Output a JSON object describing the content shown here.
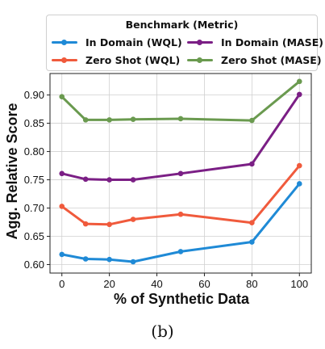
{
  "chart_data": {
    "type": "line",
    "xlabel": "% of Synthetic Data",
    "ylabel": "Agg. Relative Score",
    "x": [
      0,
      10,
      20,
      30,
      50,
      80,
      100
    ],
    "xlim": [
      -5,
      105
    ],
    "ylim": [
      0.585,
      0.938
    ],
    "xticks": [
      0,
      20,
      40,
      60,
      80,
      100
    ],
    "yticks": [
      0.6,
      0.65,
      0.7,
      0.75,
      0.8,
      0.85,
      0.9
    ],
    "grid": true,
    "legend": {
      "title": "Benchmark (Metric)",
      "placement": "top"
    },
    "series": [
      {
        "name": "In Domain (WQL)",
        "color": "#1f8ad6",
        "values": [
          0.618,
          0.61,
          0.609,
          0.605,
          0.623,
          0.64,
          0.743
        ]
      },
      {
        "name": "In Domain (MASE)",
        "color": "#7b1f85",
        "values": [
          0.761,
          0.751,
          0.75,
          0.75,
          0.761,
          0.778,
          0.901
        ]
      },
      {
        "name": "Zero Shot (WQL)",
        "color": "#f05a3c",
        "values": [
          0.703,
          0.672,
          0.671,
          0.68,
          0.689,
          0.674,
          0.775
        ]
      },
      {
        "name": "Zero Shot (MASE)",
        "color": "#6a9a4f",
        "values": [
          0.897,
          0.856,
          0.856,
          0.857,
          0.858,
          0.855,
          0.924
        ]
      }
    ]
  },
  "caption": "(b)"
}
